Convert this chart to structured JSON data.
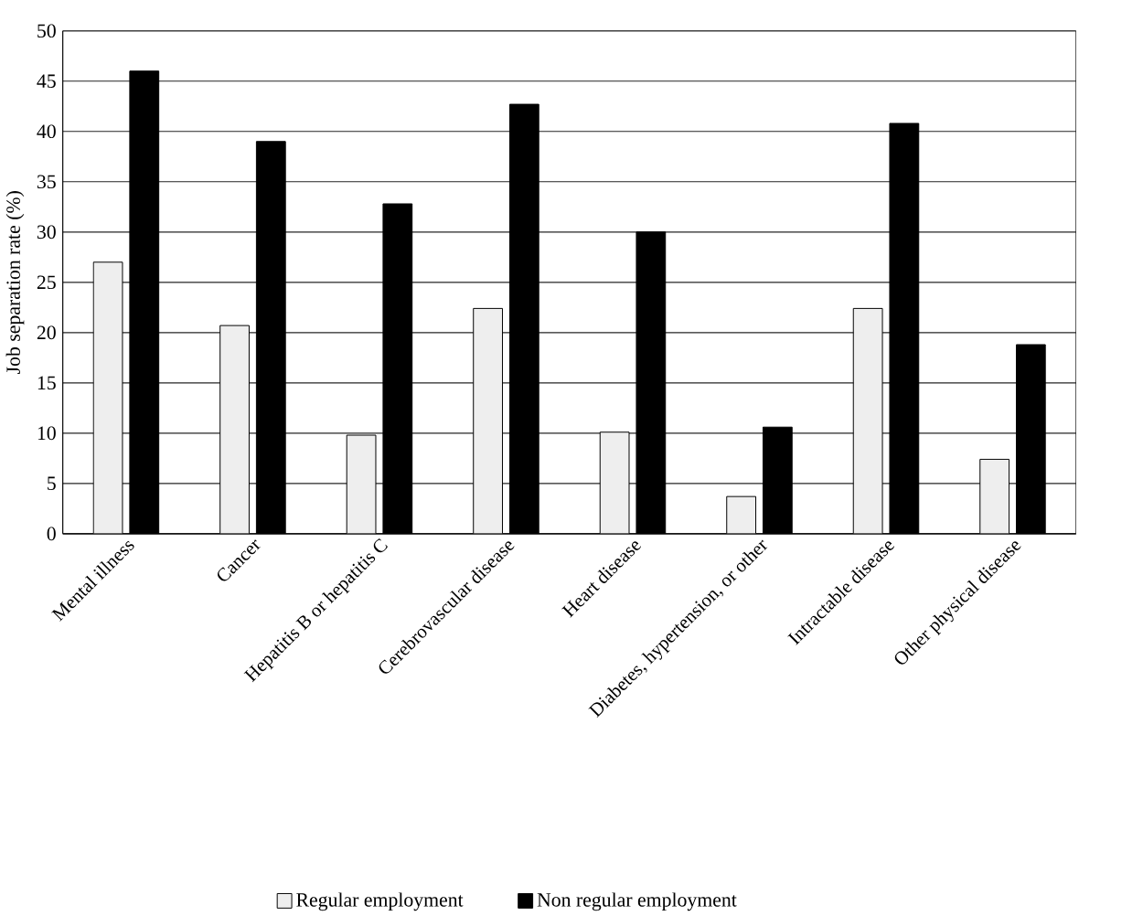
{
  "chart_data": {
    "type": "bar",
    "ylabel": "Job separation rate (%)",
    "categories": [
      "Mental illness",
      "Cancer",
      "Hepatitis B or hepatitis C",
      "Cerebrovascular disease",
      "Heart disease",
      "Diabetes, hypertension, or other",
      "Intractable disease",
      "Other physical disease"
    ],
    "series": [
      {
        "name": "Regular employment",
        "color": "#eeeeee",
        "values": [
          27,
          20.7,
          9.8,
          22.4,
          10.1,
          3.7,
          22.4,
          7.4
        ]
      },
      {
        "name": "Non regular employment",
        "color": "#000000",
        "values": [
          46,
          39,
          32.8,
          42.7,
          30,
          10.6,
          40.8,
          18.8
        ]
      }
    ],
    "ylim": [
      0,
      50
    ],
    "yticks": [
      0,
      5,
      10,
      15,
      20,
      25,
      30,
      35,
      40,
      45,
      50
    ],
    "grid": "y",
    "legend": "bottom"
  }
}
